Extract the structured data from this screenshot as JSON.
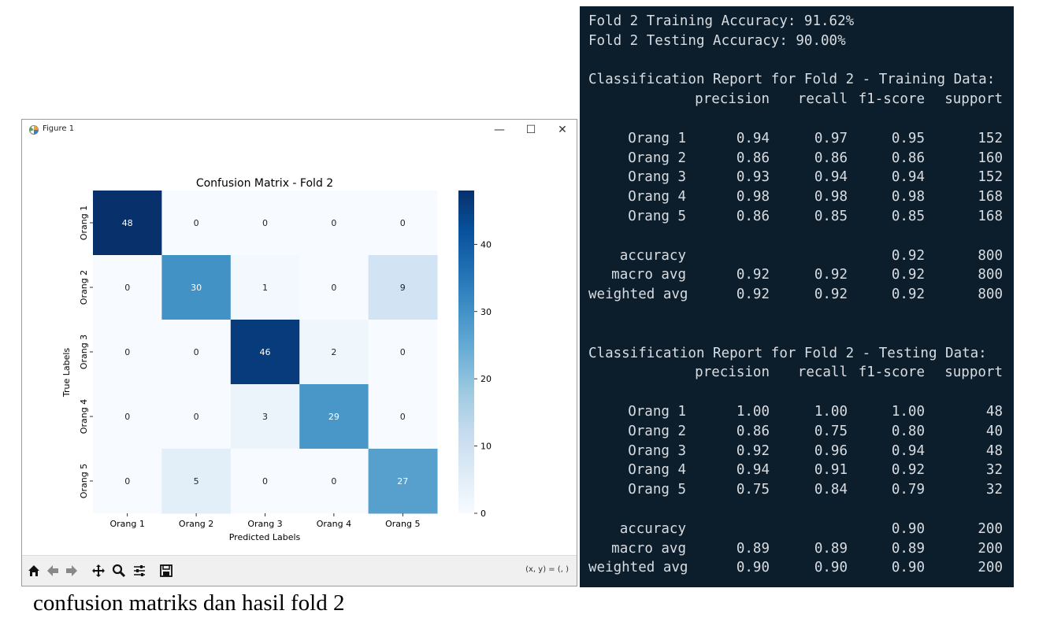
{
  "window": {
    "title": "Figure 1",
    "controls": {
      "minimize": "—",
      "maximize": "☐",
      "close": "✕"
    },
    "coord_readout": "(x, y) = (, )"
  },
  "toolbar": {
    "buttons": [
      "home-icon",
      "back-icon",
      "forward-icon",
      "pan-icon",
      "zoom-icon",
      "configure-subplots-icon",
      "save-icon"
    ]
  },
  "chart_data": {
    "type": "heatmap",
    "title": "Confusion Matrix - Fold 2",
    "xlabel": "Predicted Labels",
    "ylabel": "True Labels",
    "x_categories": [
      "Orang 1",
      "Orang 2",
      "Orang 3",
      "Orang 4",
      "Orang 5"
    ],
    "y_categories": [
      "Orang 1",
      "Orang 2",
      "Orang 3",
      "Orang 4",
      "Orang 5"
    ],
    "values": [
      [
        48,
        0,
        0,
        0,
        0
      ],
      [
        0,
        30,
        1,
        0,
        9
      ],
      [
        0,
        0,
        46,
        2,
        0
      ],
      [
        0,
        0,
        3,
        29,
        0
      ],
      [
        0,
        5,
        0,
        0,
        27
      ]
    ],
    "colorbar": {
      "min": 0,
      "max": 48,
      "ticks": [
        0,
        10,
        20,
        30,
        40
      ]
    },
    "colormap": "Blues",
    "colors": {
      "low": "#f7fbff",
      "high": "#08306b",
      "text_dark": "#262626",
      "text_light": "#ffffff"
    }
  },
  "console": {
    "lines": [
      "Fold 2 Training Accuracy: 91.62%",
      "Fold 2 Testing Accuracy: 90.00%"
    ],
    "headers": [
      "precision",
      "recall",
      "f1-score",
      "support"
    ],
    "training": {
      "title": "Classification Report for Fold 2 - Training Data:",
      "rows": [
        [
          "Orang 1",
          "0.94",
          "0.97",
          "0.95",
          "152"
        ],
        [
          "Orang 2",
          "0.86",
          "0.86",
          "0.86",
          "160"
        ],
        [
          "Orang 3",
          "0.93",
          "0.94",
          "0.94",
          "152"
        ],
        [
          "Orang 4",
          "0.98",
          "0.98",
          "0.98",
          "168"
        ],
        [
          "Orang 5",
          "0.86",
          "0.85",
          "0.85",
          "168"
        ]
      ],
      "summary": [
        [
          "accuracy",
          "",
          "",
          "0.92",
          "800"
        ],
        [
          "macro avg",
          "0.92",
          "0.92",
          "0.92",
          "800"
        ],
        [
          "weighted avg",
          "0.92",
          "0.92",
          "0.92",
          "800"
        ]
      ]
    },
    "testing": {
      "title": "Classification Report for Fold 2 - Testing Data:",
      "rows": [
        [
          "Orang 1",
          "1.00",
          "1.00",
          "1.00",
          "48"
        ],
        [
          "Orang 2",
          "0.86",
          "0.75",
          "0.80",
          "40"
        ],
        [
          "Orang 3",
          "0.92",
          "0.96",
          "0.94",
          "48"
        ],
        [
          "Orang 4",
          "0.94",
          "0.91",
          "0.92",
          "32"
        ],
        [
          "Orang 5",
          "0.75",
          "0.84",
          "0.79",
          "32"
        ]
      ],
      "summary": [
        [
          "accuracy",
          "",
          "",
          "0.90",
          "200"
        ],
        [
          "macro avg",
          "0.89",
          "0.89",
          "0.89",
          "200"
        ],
        [
          "weighted avg",
          "0.90",
          "0.90",
          "0.90",
          "200"
        ]
      ]
    },
    "colors": {
      "background": "#0c1e2b",
      "text": "#d9dde2"
    }
  },
  "caption": "confusion matriks dan hasil fold 2"
}
